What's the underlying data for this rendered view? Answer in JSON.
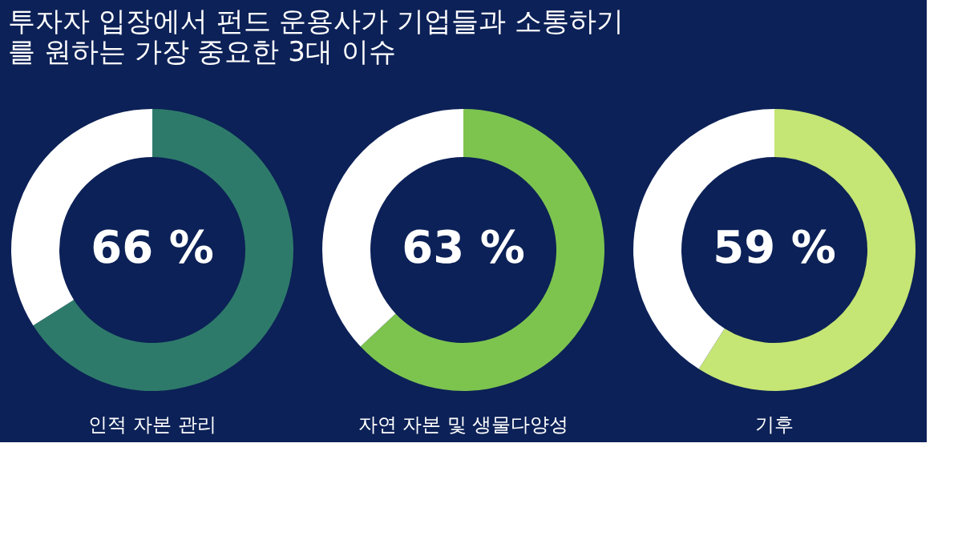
{
  "chart_data": [
    {
      "type": "donut",
      "title": [
        "투자자 입장에서 펀드 운용사가 기업들과 소통하기",
        "를 원하는 가장 중요한 3대 이슈"
      ],
      "xlabel": "인적 자본 관리",
      "categories": [
        null,
        null
      ],
      "values": [
        66,
        34
      ],
      "colors": [
        "#2e7a6a",
        "#ffffff"
      ],
      "value_labels": [
        "66 %",
        null
      ]
    },
    {
      "type": "donut",
      "xlabel": "자연 자본 및 생물다양성",
      "categories": [
        null,
        null
      ],
      "values": [
        63,
        37
      ],
      "colors": [
        "#7dc44f",
        "#ffffff"
      ],
      "value_labels": [
        "63 %",
        null
      ]
    },
    {
      "type": "donut",
      "xlabel": "기후",
      "categories": [
        null,
        null
      ],
      "values": [
        59,
        41
      ],
      "colors": [
        "#c5e574",
        "#ffffff"
      ],
      "value_labels": [
        "59 %",
        null
      ]
    }
  ]
}
